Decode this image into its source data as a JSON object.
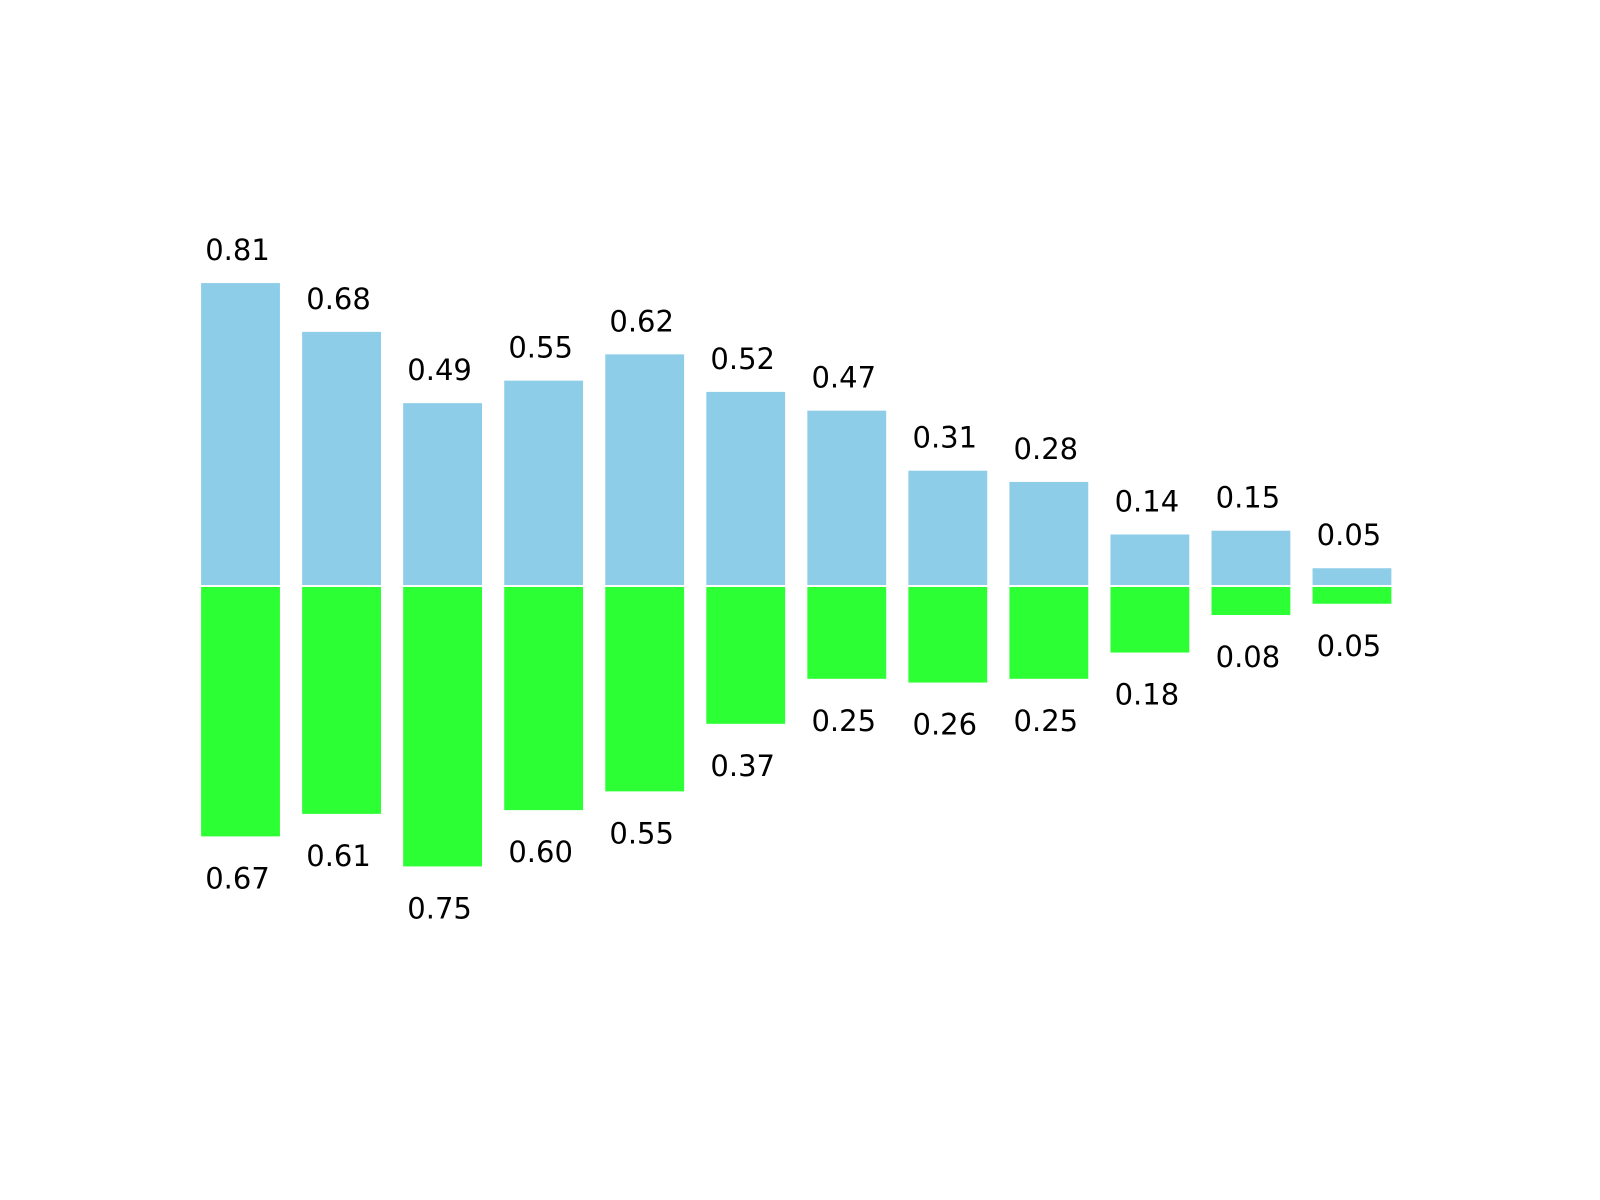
{
  "chart_data": {
    "type": "bar",
    "x": [
      0,
      1,
      2,
      3,
      4,
      5,
      6,
      7,
      8,
      9,
      10,
      11
    ],
    "xlim": [
      -0.5,
      12
    ],
    "ylim": [
      -1.25,
      1.25
    ],
    "series": [
      {
        "color": "#8ecde8",
        "orientation": "up",
        "values": [
          0.81,
          0.68,
          0.49,
          0.55,
          0.62,
          0.52,
          0.47,
          0.31,
          0.28,
          0.14,
          0.15,
          0.05
        ],
        "value_labels": [
          "0.81",
          "0.68",
          "0.49",
          "0.55",
          "0.62",
          "0.52",
          "0.47",
          "0.31",
          "0.28",
          "0.14",
          "0.15",
          "0.05"
        ]
      },
      {
        "color": "#2cff33",
        "orientation": "down",
        "values": [
          0.67,
          0.61,
          0.75,
          0.6,
          0.55,
          0.37,
          0.25,
          0.26,
          0.25,
          0.18,
          0.08,
          0.05
        ],
        "value_labels": [
          "0.67",
          "0.61",
          "0.75",
          "0.60",
          "0.55",
          "0.37",
          "0.25",
          "0.26",
          "0.25",
          "0.18",
          "0.08",
          "0.05"
        ]
      }
    ]
  }
}
